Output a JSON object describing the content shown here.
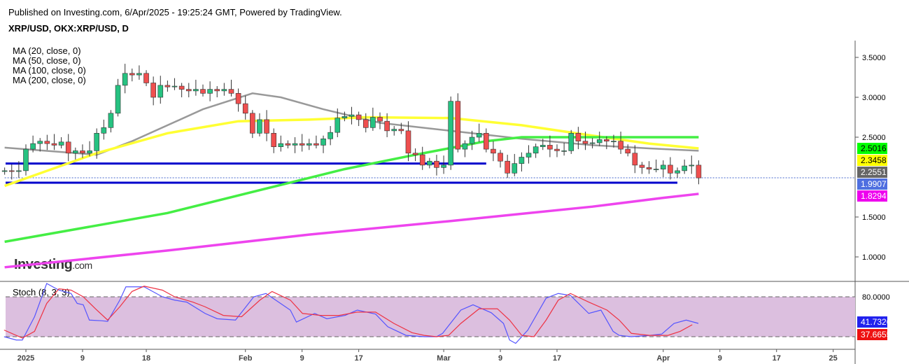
{
  "header": {
    "published": "Published on Investing.com, 6/Apr/2025 - 19:25:24 GMT, Powered by TradingView.",
    "symbol": "XRP/USD, OKX:XRP/USD, D"
  },
  "legend": [
    "MA (20, close, 0)",
    "MA (50, close, 0)",
    "MA (100, close, 0)",
    "MA (200, close, 0)"
  ],
  "logo": "Investing.com",
  "colors": {
    "up": "#26c281",
    "down": "#ef4f4f",
    "ma20": "#999999",
    "ma50": "#ffff33",
    "ma100": "#44ee44",
    "ma200": "#ee44ee",
    "hline": "#0000cc",
    "stochK": "#5555ff",
    "stochD": "#ee3344",
    "stochBand": "#dcbfdf"
  },
  "chart_data": [
    {
      "type": "candlestick",
      "title": "XRP/USD, OKX:XRP/USD, D",
      "start_day_offset": -3,
      "closes": [
        2.08,
        2.07,
        2.08,
        2.35,
        2.42,
        2.45,
        2.42,
        2.4,
        2.44,
        2.3,
        2.33,
        2.3,
        2.33,
        2.55,
        2.62,
        2.8,
        3.15,
        3.3,
        3.28,
        3.3,
        3.18,
        3.0,
        3.15,
        3.13,
        3.14,
        3.1,
        3.08,
        3.1,
        3.05,
        3.1,
        3.08,
        3.1,
        3.05,
        2.92,
        2.8,
        2.55,
        2.72,
        2.55,
        2.38,
        2.42,
        2.4,
        2.42,
        2.4,
        2.42,
        2.4,
        2.48,
        2.56,
        2.74,
        2.76,
        2.78,
        2.72,
        2.62,
        2.75,
        2.7,
        2.58,
        2.6,
        2.58,
        2.3,
        2.28,
        2.15,
        2.2,
        2.12,
        2.15,
        2.95,
        2.35,
        2.42,
        2.5,
        2.55,
        2.35,
        2.3,
        2.2,
        2.05,
        2.17,
        2.25,
        2.3,
        2.38,
        2.4,
        2.35,
        2.33,
        2.33,
        2.55,
        2.45,
        2.42,
        2.43,
        2.47,
        2.45,
        2.45,
        2.35,
        2.3,
        2.15,
        2.12,
        2.1,
        2.1,
        2.15,
        2.05,
        2.08,
        2.14,
        2.15,
        1.99
      ],
      "ma": [
        {
          "name": "MA20",
          "color": "ma20",
          "points": [
            [
              -3,
              2.37
            ],
            [
              10,
              2.28
            ],
            [
              15,
              2.45
            ],
            [
              25,
              2.85
            ],
            [
              32,
              3.05
            ],
            [
              36,
              3.0
            ],
            [
              42,
              2.85
            ],
            [
              50,
              2.68
            ],
            [
              60,
              2.58
            ],
            [
              70,
              2.48
            ],
            [
              80,
              2.4
            ],
            [
              88,
              2.36
            ],
            [
              95,
              2.33
            ]
          ],
          "last": 2.2551
        },
        {
          "name": "MA50",
          "color": "ma50",
          "points": [
            [
              -3,
              1.89
            ],
            [
              10,
              2.3
            ],
            [
              20,
              2.55
            ],
            [
              30,
              2.7
            ],
            [
              40,
              2.72
            ],
            [
              48,
              2.75
            ],
            [
              60,
              2.74
            ],
            [
              70,
              2.65
            ],
            [
              80,
              2.52
            ],
            [
              88,
              2.42
            ],
            [
              95,
              2.36
            ]
          ],
          "last": 2.3458
        },
        {
          "name": "MA100",
          "color": "ma100",
          "points": [
            [
              -3,
              1.19
            ],
            [
              20,
              1.55
            ],
            [
              35,
              1.88
            ],
            [
              45,
              2.1
            ],
            [
              55,
              2.28
            ],
            [
              65,
              2.45
            ],
            [
              70,
              2.5
            ],
            [
              80,
              2.5
            ],
            [
              95,
              2.5
            ]
          ],
          "last": 2.5016
        },
        {
          "name": "MA200",
          "color": "ma200",
          "points": [
            [
              -3,
              0.87
            ],
            [
              20,
              1.08
            ],
            [
              40,
              1.28
            ],
            [
              60,
              1.45
            ],
            [
              80,
              1.63
            ],
            [
              90,
              1.74
            ],
            [
              95,
              1.79
            ]
          ],
          "last": 1.8294
        }
      ],
      "hlines": [
        {
          "value": 2.17,
          "from": -3,
          "to": 65
        },
        {
          "value": 1.93,
          "from": -3,
          "to": 92
        }
      ],
      "last_price": 1.9907,
      "yticks": [
        "3.5000",
        "3.0000",
        "2.5000",
        "1.5000",
        "1.0000"
      ],
      "ytick_values": [
        3.5,
        3.0,
        2.5,
        1.5,
        1.0
      ],
      "ylim": [
        0.75,
        3.7
      ]
    },
    {
      "type": "line",
      "title": "Stoch (8, 3, 3)",
      "ylim": [
        0,
        100
      ],
      "levels": [
        80,
        20
      ],
      "yticks": [
        "80.0000"
      ],
      "K": [
        [
          -3,
          20
        ],
        [
          -1,
          15
        ],
        [
          0,
          15
        ],
        [
          2,
          50
        ],
        [
          4,
          100
        ],
        [
          6,
          90
        ],
        [
          8,
          85
        ],
        [
          9,
          70
        ],
        [
          10,
          68
        ],
        [
          11,
          45
        ],
        [
          13,
          44
        ],
        [
          14,
          43
        ],
        [
          16,
          75
        ],
        [
          17,
          95
        ],
        [
          20,
          95
        ],
        [
          21,
          90
        ],
        [
          23,
          80
        ],
        [
          25,
          75
        ],
        [
          27,
          72
        ],
        [
          30,
          55
        ],
        [
          32,
          47
        ],
        [
          35,
          45
        ],
        [
          38,
          80
        ],
        [
          40,
          85
        ],
        [
          44,
          60
        ],
        [
          45,
          42
        ],
        [
          48,
          55
        ],
        [
          50,
          47
        ],
        [
          53,
          52
        ],
        [
          55,
          60
        ],
        [
          58,
          54
        ],
        [
          60,
          35
        ],
        [
          63,
          22
        ],
        [
          66,
          20
        ],
        [
          68,
          20
        ],
        [
          69,
          25
        ],
        [
          72,
          60
        ],
        [
          74,
          68
        ],
        [
          77,
          56
        ],
        [
          79,
          40
        ],
        [
          80,
          15
        ],
        [
          81,
          10
        ],
        [
          83,
          30
        ],
        [
          86,
          78
        ],
        [
          88,
          85
        ],
        [
          90,
          82
        ],
        [
          93,
          55
        ],
        [
          95,
          60
        ],
        [
          97,
          28
        ],
        [
          98,
          22
        ],
        [
          100,
          20
        ],
        [
          103,
          22
        ],
        [
          105,
          24
        ],
        [
          107,
          40
        ],
        [
          109,
          45
        ],
        [
          111,
          40
        ]
      ],
      "D": [
        [
          -3,
          30
        ],
        [
          0,
          18
        ],
        [
          2,
          28
        ],
        [
          4,
          70
        ],
        [
          6,
          92
        ],
        [
          8,
          90
        ],
        [
          10,
          80
        ],
        [
          12,
          62
        ],
        [
          14,
          45
        ],
        [
          16,
          65
        ],
        [
          18,
          88
        ],
        [
          20,
          96
        ],
        [
          23,
          90
        ],
        [
          25,
          80
        ],
        [
          28,
          72
        ],
        [
          30,
          65
        ],
        [
          33,
          52
        ],
        [
          36,
          50
        ],
        [
          39,
          75
        ],
        [
          41,
          88
        ],
        [
          44,
          75
        ],
        [
          46,
          55
        ],
        [
          49,
          52
        ],
        [
          52,
          52
        ],
        [
          55,
          57
        ],
        [
          58,
          57
        ],
        [
          61,
          40
        ],
        [
          64,
          26
        ],
        [
          66,
          22
        ],
        [
          68,
          20
        ],
        [
          70,
          22
        ],
        [
          72,
          40
        ],
        [
          75,
          62
        ],
        [
          78,
          62
        ],
        [
          80,
          45
        ],
        [
          82,
          22
        ],
        [
          84,
          20
        ],
        [
          86,
          45
        ],
        [
          88,
          75
        ],
        [
          90,
          85
        ],
        [
          93,
          72
        ],
        [
          96,
          60
        ],
        [
          98,
          45
        ],
        [
          100,
          25
        ],
        [
          103,
          22
        ],
        [
          106,
          22
        ],
        [
          108,
          28
        ],
        [
          110,
          38
        ]
      ],
      "K_last": 41.7326,
      "D_last": 37.6655
    },
    {
      "type": "time_axis",
      "labels": [
        "2025",
        "9",
        "18",
        "Feb",
        "9",
        "17",
        "Mar",
        "9",
        "17",
        "Apr",
        "9",
        "17",
        "25"
      ],
      "label_days": [
        0,
        8,
        17,
        31,
        39,
        47,
        59,
        67,
        75,
        90,
        98,
        106,
        114
      ]
    }
  ]
}
